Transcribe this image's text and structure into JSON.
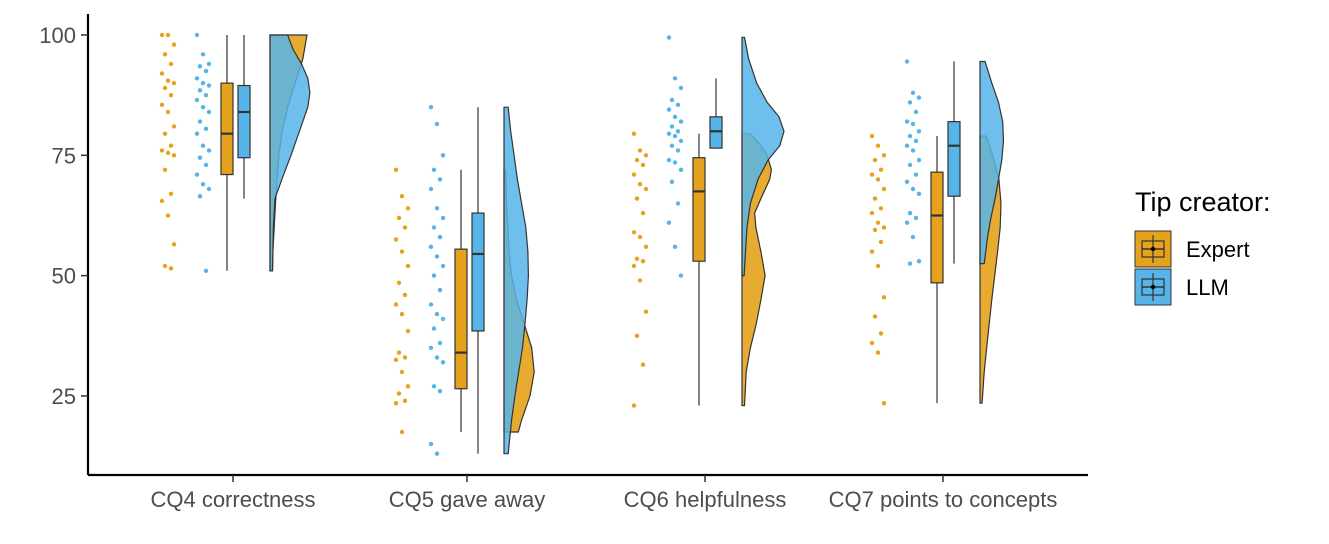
{
  "chart_data": {
    "type": "raincloud",
    "categories": [
      "CQ4 correctness",
      "CQ5 gave away",
      "CQ6 helpfulness",
      "CQ7 points to concepts"
    ],
    "ylim": [
      12,
      104
    ],
    "yticks": [
      25,
      50,
      75,
      100
    ],
    "legend": {
      "title": "Tip creator:",
      "position": "right"
    },
    "series": [
      {
        "name": "Expert",
        "color": "#E5A21C",
        "groups": [
          {
            "box": {
              "min": 51,
              "q1": 71,
              "median": 79.5,
              "q3": 90,
              "max": 100
            },
            "points": [
              100,
              100,
              98,
              96,
              94,
              92,
              90.5,
              90,
              89,
              87.5,
              85.5,
              84,
              81,
              79.5,
              77,
              76,
              75.5,
              75,
              72,
              67,
              65.5,
              62.5,
              56.5,
              52,
              51.5
            ],
            "density": [
              [
                51,
                0.06
              ],
              [
                55,
                0.07
              ],
              [
                60,
                0.1
              ],
              [
                65,
                0.13
              ],
              [
                70,
                0.17
              ],
              [
                75,
                0.21
              ],
              [
                80,
                0.29
              ],
              [
                85,
                0.42
              ],
              [
                90,
                0.6
              ],
              [
                95,
                0.78
              ],
              [
                100,
                0.88
              ]
            ]
          },
          {
            "box": {
              "min": 17.5,
              "q1": 26.5,
              "median": 34,
              "q3": 55.5,
              "max": 72
            },
            "points": [
              72,
              66.5,
              64,
              62,
              60,
              57.5,
              55,
              52,
              48.5,
              46,
              44,
              42,
              38.5,
              34,
              33,
              32.5,
              30,
              27,
              25.5,
              24,
              23.5,
              17.5
            ],
            "density": [
              [
                17.5,
                0.34
              ],
              [
                20,
                0.42
              ],
              [
                25,
                0.62
              ],
              [
                30,
                0.72
              ],
              [
                35,
                0.66
              ],
              [
                40,
                0.48
              ],
              [
                45,
                0.3
              ],
              [
                50,
                0.18
              ],
              [
                55,
                0.12
              ],
              [
                60,
                0.09
              ],
              [
                65,
                0.06
              ],
              [
                72,
                0.04
              ]
            ]
          },
          {
            "box": {
              "min": 23,
              "q1": 53,
              "median": 67.5,
              "q3": 74.5,
              "max": 79.5
            },
            "points": [
              79.5,
              76,
              75,
              74,
              73,
              71,
              69,
              68,
              66,
              63,
              59,
              58,
              56,
              53.5,
              53,
              52,
              49,
              42.5,
              37.5,
              31.5,
              23
            ],
            "density": [
              [
                23,
                0.06
              ],
              [
                30,
                0.1
              ],
              [
                35,
                0.2
              ],
              [
                40,
                0.34
              ],
              [
                45,
                0.45
              ],
              [
                50,
                0.55
              ],
              [
                55,
                0.45
              ],
              [
                60,
                0.33
              ],
              [
                63,
                0.3
              ],
              [
                66,
                0.45
              ],
              [
                70,
                0.66
              ],
              [
                72,
                0.7
              ],
              [
                75,
                0.6
              ],
              [
                77,
                0.45
              ],
              [
                79.5,
                0.2
              ]
            ]
          },
          {
            "box": {
              "min": 23.5,
              "q1": 48.5,
              "median": 62.5,
              "q3": 71.5,
              "max": 79
            },
            "points": [
              79,
              77,
              75,
              74,
              72,
              71,
              70,
              68,
              66,
              64,
              63,
              61,
              60,
              59.5,
              57,
              55,
              52,
              45.5,
              41.5,
              38,
              36,
              34,
              23.5
            ],
            "density": [
              [
                23.5,
                0.05
              ],
              [
                30,
                0.1
              ],
              [
                35,
                0.16
              ],
              [
                40,
                0.22
              ],
              [
                45,
                0.28
              ],
              [
                50,
                0.35
              ],
              [
                55,
                0.42
              ],
              [
                60,
                0.48
              ],
              [
                65,
                0.5
              ],
              [
                70,
                0.45
              ],
              [
                75,
                0.3
              ],
              [
                79,
                0.15
              ]
            ]
          }
        ]
      },
      {
        "name": "LLM",
        "color": "#56B4E9",
        "groups": [
          {
            "box": {
              "min": 66,
              "q1": 74.5,
              "median": 84,
              "q3": 89.5,
              "max": 100
            },
            "points": [
              100,
              96,
              94,
              93.5,
              92.5,
              91,
              90,
              89.5,
              88.5,
              87.5,
              86.5,
              85,
              84,
              82,
              80.5,
              79.5,
              77,
              76,
              74.5,
              73,
              71,
              69,
              68,
              66.5,
              51
            ],
            "density": [
              [
                51,
                0.06
              ],
              [
                60,
                0.08
              ],
              [
                66,
                0.12
              ],
              [
                70,
                0.28
              ],
              [
                75,
                0.5
              ],
              [
                80,
                0.7
              ],
              [
                85,
                0.9
              ],
              [
                88,
                0.95
              ],
              [
                91,
                0.9
              ],
              [
                94,
                0.75
              ],
              [
                97,
                0.55
              ],
              [
                100,
                0.42
              ]
            ]
          },
          {
            "box": {
              "min": 13,
              "q1": 38.5,
              "median": 54.5,
              "q3": 63,
              "max": 85
            },
            "points": [
              85,
              81.5,
              75,
              72,
              70,
              68,
              64,
              62,
              60,
              58,
              56,
              54,
              52,
              50,
              47,
              44,
              42,
              41,
              39,
              36,
              35,
              33,
              32,
              27,
              26,
              15,
              13
            ],
            "density": [
              [
                13,
                0.1
              ],
              [
                20,
                0.18
              ],
              [
                25,
                0.26
              ],
              [
                30,
                0.35
              ],
              [
                35,
                0.44
              ],
              [
                40,
                0.5
              ],
              [
                45,
                0.55
              ],
              [
                50,
                0.58
              ],
              [
                55,
                0.57
              ],
              [
                60,
                0.52
              ],
              [
                65,
                0.42
              ],
              [
                70,
                0.32
              ],
              [
                75,
                0.24
              ],
              [
                80,
                0.16
              ],
              [
                85,
                0.1
              ]
            ]
          },
          {
            "box": {
              "min": 76.5,
              "q1": 76.5,
              "median": 80,
              "q3": 83,
              "max": 91
            },
            "points": [
              99.5,
              91,
              89,
              86.5,
              85.5,
              84.5,
              83,
              82,
              81,
              80,
              79.5,
              79,
              78,
              77,
              76,
              74,
              73.5,
              72,
              69.5,
              65,
              61,
              56,
              50
            ],
            "density": [
              [
                50,
                0.05
              ],
              [
                60,
                0.12
              ],
              [
                65,
                0.2
              ],
              [
                70,
                0.38
              ],
              [
                74,
                0.62
              ],
              [
                77,
                0.9
              ],
              [
                80,
                1.0
              ],
              [
                83,
                0.88
              ],
              [
                86,
                0.6
              ],
              [
                90,
                0.35
              ],
              [
                95,
                0.16
              ],
              [
                99.5,
                0.06
              ]
            ]
          },
          {
            "box": {
              "min": 52.5,
              "q1": 66.5,
              "median": 77,
              "q3": 82,
              "max": 94.5
            },
            "points": [
              94.5,
              88,
              87,
              86,
              84,
              82,
              81.5,
              80,
              79,
              78,
              77,
              76,
              74,
              73,
              71,
              69.5,
              68,
              67,
              63,
              62,
              61,
              58,
              53,
              52.5
            ],
            "density": [
              [
                52.5,
                0.1
              ],
              [
                58,
                0.18
              ],
              [
                62,
                0.26
              ],
              [
                66,
                0.36
              ],
              [
                70,
                0.44
              ],
              [
                74,
                0.52
              ],
              [
                78,
                0.56
              ],
              [
                82,
                0.54
              ],
              [
                86,
                0.44
              ],
              [
                90,
                0.28
              ],
              [
                94.5,
                0.12
              ]
            ]
          }
        ]
      }
    ]
  }
}
